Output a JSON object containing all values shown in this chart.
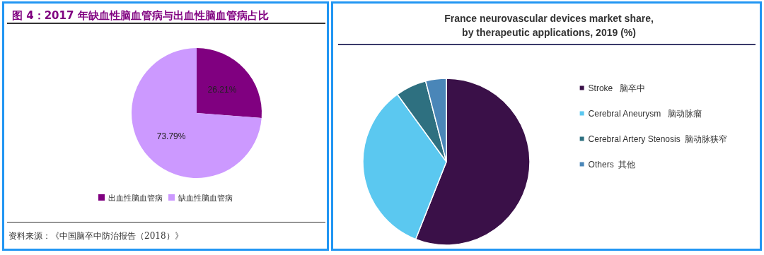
{
  "chart_data": [
    {
      "type": "pie",
      "title": "图 4：2017 年缺血性脑血管病与出血性脑血管病占比",
      "categories": [
        "出血性脑血管病",
        "缺血性脑血管病"
      ],
      "values": [
        26.21,
        73.79
      ],
      "colors": [
        "#800080",
        "#cc99ff"
      ],
      "value_labels": [
        "26.21%",
        "73.79%"
      ],
      "legend": "bottom",
      "annotations": [
        "资料来源：《中国脑卒中防治报告（2018）》"
      ]
    },
    {
      "type": "pie",
      "title": "France neurovascular devices market share,\nby therapeutic applications, 2019 (%)",
      "categories": [
        "Stroke   脑卒中",
        "Cerebral Aneurysm   脑动脉瘤",
        "Cerebral Artery Stenosis  脑动脉狭窄",
        "Others  其他"
      ],
      "values": [
        56,
        34,
        6,
        4
      ],
      "colors": [
        "#3a1048",
        "#5bc8f0",
        "#2e7080",
        "#4a86b8"
      ],
      "legend": "right"
    }
  ]
}
